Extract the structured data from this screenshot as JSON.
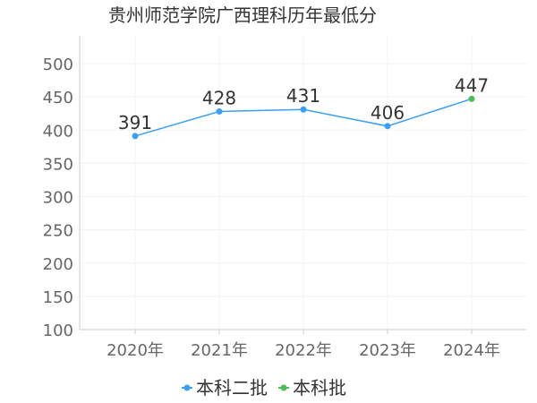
{
  "chart_data": {
    "type": "line",
    "title": "贵州师范学院广西理科历年最低分",
    "categories": [
      "2020年",
      "2021年",
      "2022年",
      "2023年",
      "2024年"
    ],
    "ylim": [
      100,
      500
    ],
    "yticks": [
      100,
      150,
      200,
      250,
      300,
      350,
      400,
      450,
      500
    ],
    "grid": true,
    "legend_position": "bottom",
    "series": [
      {
        "name": "本科二批",
        "color": "#3a9ff5",
        "values": [
          391,
          428,
          431,
          406,
          null
        ]
      },
      {
        "name": "本科批",
        "color": "#4dbb58",
        "values": [
          null,
          null,
          null,
          null,
          447
        ]
      }
    ],
    "line_color": "#3a9ff5",
    "data_labels": [
      "391",
      "428",
      "431",
      "406",
      "447"
    ]
  }
}
